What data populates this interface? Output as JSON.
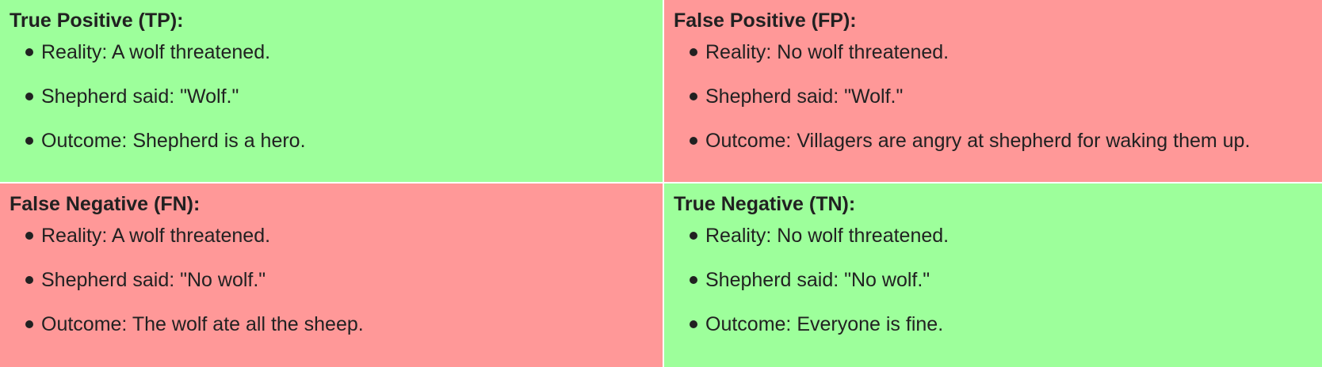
{
  "colors": {
    "positive_cell": "#9dff9b",
    "negative_cell": "#ff9898",
    "divider": "#ffffff",
    "text": "#212121"
  },
  "cells": [
    {
      "key": "tp",
      "title": "True Positive (TP):",
      "color": "#9dff9b",
      "items": [
        "Reality: A wolf threatened.",
        "Shepherd said: \"Wolf.\"",
        "Outcome: Shepherd is a hero."
      ]
    },
    {
      "key": "fp",
      "title": "False Positive (FP):",
      "color": "#ff9898",
      "items": [
        "Reality: No wolf threatened.",
        "Shepherd said: \"Wolf.\"",
        "Outcome: Villagers are angry at shepherd for waking them up."
      ]
    },
    {
      "key": "fn",
      "title": "False Negative (FN):",
      "color": "#ff9898",
      "items": [
        "Reality: A wolf threatened.",
        "Shepherd said: \"No wolf.\"",
        "Outcome: The wolf ate all the sheep."
      ]
    },
    {
      "key": "tn",
      "title": "True Negative (TN):",
      "color": "#9dff9b",
      "items": [
        "Reality: No wolf threatened.",
        "Shepherd said: \"No wolf.\"",
        "Outcome: Everyone is fine."
      ]
    }
  ]
}
